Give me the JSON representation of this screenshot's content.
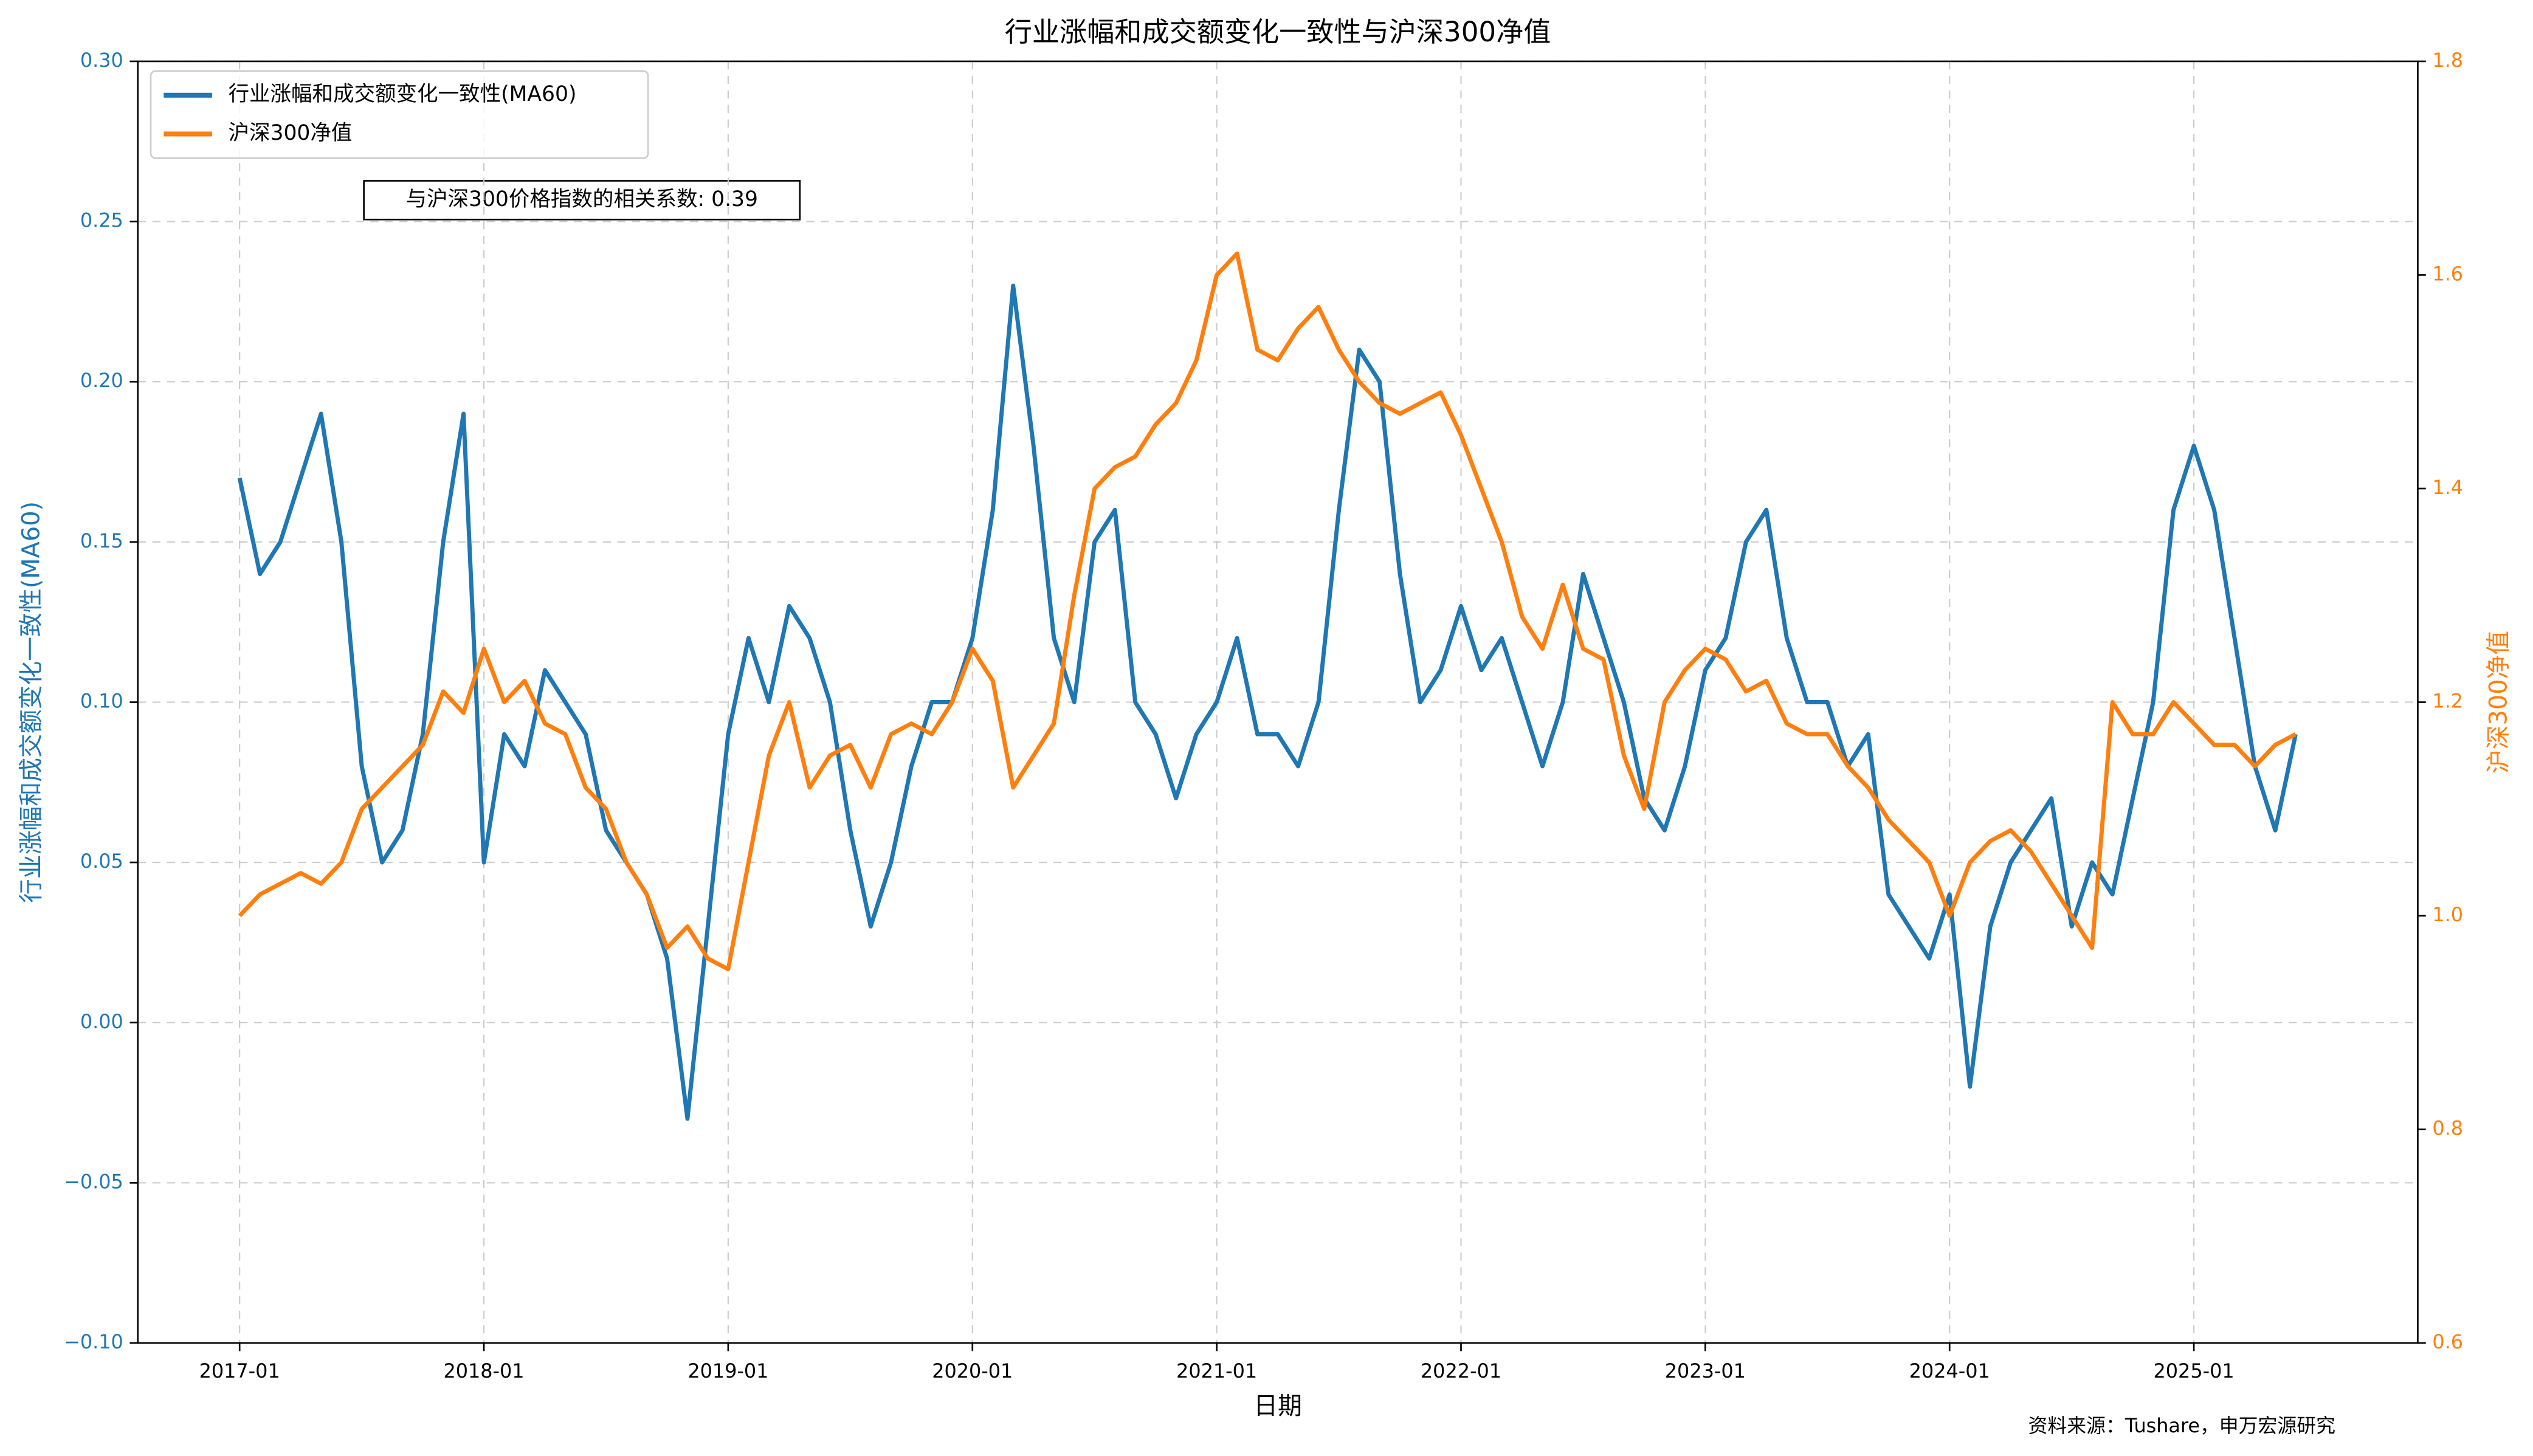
{
  "chart_data": {
    "type": "line",
    "title": "行业涨幅和成交额变化一致性与沪深300净值",
    "xlabel": "日期",
    "ylabel": "行业涨幅和成交额变化一致性(MA60)",
    "y2label": "沪深300净值",
    "annotation": "与沪深300价格指数的相关系数: 0.39",
    "source": "资料来源：Tushare，申万宏源研究",
    "legend": "upper left",
    "grid": true,
    "x": [
      "2017-01",
      "2017-02",
      "2017-03",
      "2017-04",
      "2017-05",
      "2017-06",
      "2017-07",
      "2017-08",
      "2017-09",
      "2017-10",
      "2017-11",
      "2017-12",
      "2018-01",
      "2018-02",
      "2018-03",
      "2018-04",
      "2018-05",
      "2018-06",
      "2018-07",
      "2018-08",
      "2018-09",
      "2018-10",
      "2018-11",
      "2018-12",
      "2019-01",
      "2019-02",
      "2019-03",
      "2019-04",
      "2019-05",
      "2019-06",
      "2019-07",
      "2019-08",
      "2019-09",
      "2019-10",
      "2019-11",
      "2019-12",
      "2020-01",
      "2020-02",
      "2020-03",
      "2020-04",
      "2020-05",
      "2020-06",
      "2020-07",
      "2020-08",
      "2020-09",
      "2020-10",
      "2020-11",
      "2020-12",
      "2021-01",
      "2021-02",
      "2021-03",
      "2021-04",
      "2021-05",
      "2021-06",
      "2021-07",
      "2021-08",
      "2021-09",
      "2021-10",
      "2021-11",
      "2021-12",
      "2022-01",
      "2022-02",
      "2022-03",
      "2022-04",
      "2022-05",
      "2022-06",
      "2022-07",
      "2022-08",
      "2022-09",
      "2022-10",
      "2022-11",
      "2022-12",
      "2023-01",
      "2023-02",
      "2023-03",
      "2023-04",
      "2023-05",
      "2023-06",
      "2023-07",
      "2023-08",
      "2023-09",
      "2023-10",
      "2023-11",
      "2023-12",
      "2024-01",
      "2024-02",
      "2024-03",
      "2024-04",
      "2024-05",
      "2024-06",
      "2024-07",
      "2024-08",
      "2024-09",
      "2024-10",
      "2024-11",
      "2024-12",
      "2025-01",
      "2025-02",
      "2025-03",
      "2025-04",
      "2025-05",
      "2025-06"
    ],
    "xlim": [
      "2016-08",
      "2025-12"
    ],
    "xticks": [
      "2017-01",
      "2018-01",
      "2019-01",
      "2020-01",
      "2021-01",
      "2022-01",
      "2023-01",
      "2024-01",
      "2025-01"
    ],
    "ylim": [
      -0.1,
      0.3
    ],
    "yticks": [
      {
        "value": -0.1,
        "label": "−0.10"
      },
      {
        "value": -0.05,
        "label": "−0.05"
      },
      {
        "value": 0.0,
        "label": "0.00"
      },
      {
        "value": 0.05,
        "label": "0.05"
      },
      {
        "value": 0.1,
        "label": "0.10"
      },
      {
        "value": 0.15,
        "label": "0.15"
      },
      {
        "value": 0.2,
        "label": "0.20"
      },
      {
        "value": 0.25,
        "label": "0.25"
      },
      {
        "value": 0.3,
        "label": "0.30"
      }
    ],
    "y2lim": [
      0.6,
      1.8
    ],
    "y2ticks": [
      0.6,
      0.8,
      {
        "value": 1.0,
        "label": "1.0"
      },
      1.2,
      1.4,
      1.6,
      1.8
    ],
    "series": [
      {
        "name": "行业涨幅和成交额变化一致性(MA60)",
        "color": "#1f77b4",
        "axis": "y",
        "values": [
          0.17,
          0.14,
          0.15,
          0.17,
          0.19,
          0.15,
          0.08,
          0.05,
          0.06,
          0.09,
          0.15,
          0.19,
          0.05,
          0.09,
          0.08,
          0.11,
          0.1,
          0.09,
          0.06,
          0.05,
          0.04,
          0.02,
          -0.03,
          0.03,
          0.09,
          0.12,
          0.1,
          0.13,
          0.12,
          0.1,
          0.06,
          0.03,
          0.05,
          0.08,
          0.1,
          0.1,
          0.12,
          0.16,
          0.23,
          0.18,
          0.12,
          0.1,
          0.15,
          0.16,
          0.1,
          0.09,
          0.07,
          0.09,
          0.1,
          0.12,
          0.09,
          0.09,
          0.08,
          0.1,
          0.16,
          0.21,
          0.2,
          0.14,
          0.1,
          0.11,
          0.13,
          0.11,
          0.12,
          0.1,
          0.08,
          0.1,
          0.14,
          0.12,
          0.1,
          0.07,
          0.06,
          0.08,
          0.11,
          0.12,
          0.15,
          0.16,
          0.12,
          0.1,
          0.1,
          0.08,
          0.09,
          0.04,
          0.03,
          0.02,
          0.04,
          -0.02,
          0.03,
          0.05,
          0.06,
          0.07,
          0.03,
          0.05,
          0.04,
          0.07,
          0.1,
          0.16,
          0.18,
          0.16,
          0.12,
          0.08,
          0.06,
          0.09
        ]
      },
      {
        "name": "沪深300净值",
        "color": "#ff7f0e",
        "axis": "y2",
        "values": [
          1.0,
          1.02,
          1.03,
          1.04,
          1.03,
          1.05,
          1.1,
          1.12,
          1.14,
          1.16,
          1.21,
          1.19,
          1.25,
          1.2,
          1.22,
          1.18,
          1.17,
          1.12,
          1.1,
          1.05,
          1.02,
          0.97,
          0.99,
          0.96,
          0.95,
          1.05,
          1.15,
          1.2,
          1.12,
          1.15,
          1.16,
          1.12,
          1.17,
          1.18,
          1.17,
          1.2,
          1.25,
          1.22,
          1.12,
          1.15,
          1.18,
          1.3,
          1.4,
          1.42,
          1.43,
          1.46,
          1.48,
          1.52,
          1.6,
          1.62,
          1.53,
          1.52,
          1.55,
          1.57,
          1.53,
          1.5,
          1.48,
          1.47,
          1.48,
          1.49,
          1.45,
          1.4,
          1.35,
          1.28,
          1.25,
          1.31,
          1.25,
          1.24,
          1.15,
          1.1,
          1.2,
          1.23,
          1.25,
          1.24,
          1.21,
          1.22,
          1.18,
          1.17,
          1.17,
          1.14,
          1.12,
          1.09,
          1.07,
          1.05,
          1.0,
          1.05,
          1.07,
          1.08,
          1.06,
          1.03,
          1.0,
          0.97,
          1.2,
          1.17,
          1.17,
          1.2,
          1.18,
          1.16,
          1.16,
          1.14,
          1.16,
          1.17
        ]
      }
    ]
  }
}
